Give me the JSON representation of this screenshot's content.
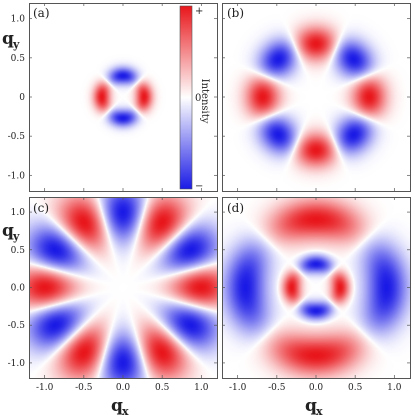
{
  "chart_data": [
    {
      "type": "heatmap",
      "panel": "(a)",
      "pattern": "four-lobe (cos 2θ) ring",
      "x_range": [
        -1.2,
        1.2
      ],
      "y_range": [
        -1.2,
        1.2
      ],
      "rings": [
        {
          "radius": 0.27,
          "width": 0.1,
          "lobes": 4,
          "red_along": "x-axis"
        }
      ],
      "xticks": [],
      "yticks": [
        "-1.0",
        "-0.5",
        "0",
        "0.5",
        "1.0"
      ]
    },
    {
      "type": "heatmap",
      "panel": "(b)",
      "pattern": "eight-lobe (cos 4θ) ring",
      "x_range": [
        -1.2,
        1.2
      ],
      "y_range": [
        -1.2,
        1.2
      ],
      "rings": [
        {
          "radius": 0.68,
          "width": 0.2,
          "lobes": 8,
          "red_along": "axes"
        }
      ],
      "xticks": [],
      "yticks": []
    },
    {
      "type": "heatmap",
      "panel": "(c)",
      "pattern": "twelve-lobe (cos 6θ) ring",
      "x_range": [
        -1.2,
        1.2
      ],
      "y_range": [
        -1.2,
        1.2
      ],
      "rings": [
        {
          "radius": 1.0,
          "width": 0.35,
          "lobes": 12,
          "red_along": "x-axis"
        }
      ],
      "xticks": [
        "-1.0",
        "-0.5",
        "0.0",
        "0.5",
        "1.0"
      ],
      "yticks": [
        "-1.0",
        "-0.5",
        "0.0",
        "0.5",
        "1.0"
      ]
    },
    {
      "type": "heatmap",
      "panel": "(d)",
      "pattern": "superposed four-lobe rings of opposite sign",
      "x_range": [
        -1.2,
        1.2
      ],
      "y_range": [
        -1.2,
        1.2
      ],
      "rings": [
        {
          "radius": 0.31,
          "width": 0.11,
          "lobes": 4,
          "red_along": "x-axis"
        },
        {
          "radius": 0.9,
          "width": 0.25,
          "lobes": 4,
          "red_along": "y-axis"
        }
      ],
      "xticks": [
        "-1.0",
        "-0.5",
        "0.0",
        "0.5",
        "1.0"
      ],
      "yticks": []
    }
  ],
  "colorbar": {
    "label": "Intensity",
    "top_label": "+",
    "mid_label": "0",
    "bottom_label": "−",
    "colors": {
      "positive": "#e8161b",
      "zero": "#ffffff",
      "negative": "#1a1ae6"
    }
  },
  "axes": {
    "x_title": "q",
    "x_sub": "x",
    "y_title": "q",
    "y_sub": "y"
  }
}
